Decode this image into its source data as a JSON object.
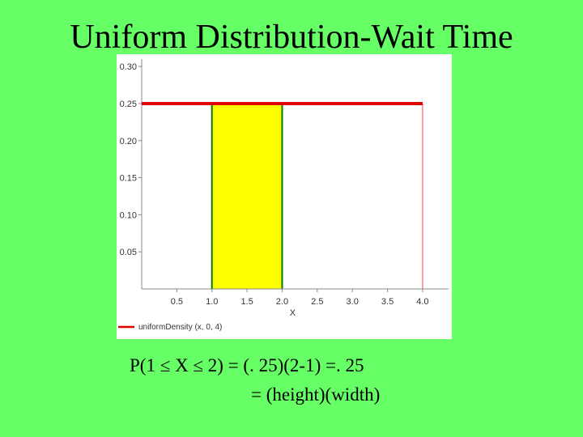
{
  "slide": {
    "title": "Uniform Distribution-Wait Time",
    "formula_line1": "P(1 ≤ X ≤ 2) = (. 25)(2-1) =. 25",
    "formula_line2": "= (height)(width)"
  },
  "chart_data": {
    "type": "line",
    "xlabel": "X",
    "ylabel": "",
    "xlim": [
      0,
      4.37
    ],
    "ylim": [
      0,
      0.31
    ],
    "x_ticks": [
      "0.5",
      "1.0",
      "1.5",
      "2.0",
      "2.5",
      "3.0",
      "3.5",
      "4.0"
    ],
    "y_ticks": [
      "0.05",
      "0.10",
      "0.15",
      "0.20",
      "0.25",
      "0.30"
    ],
    "series": [
      {
        "name": "uniformDensity (x, 0, 4)",
        "x": [
          0,
          4
        ],
        "y": [
          0.25,
          0.25
        ],
        "color": "#e00000"
      }
    ],
    "shaded_region": {
      "x_from": 1.0,
      "x_to": 2.0,
      "height": 0.25,
      "fill": "#ffff00",
      "edge": "#007a00"
    },
    "end_marker": {
      "x": 4.0,
      "color": "#ff8080"
    },
    "grid": false,
    "legend_position": "bottom-left"
  }
}
